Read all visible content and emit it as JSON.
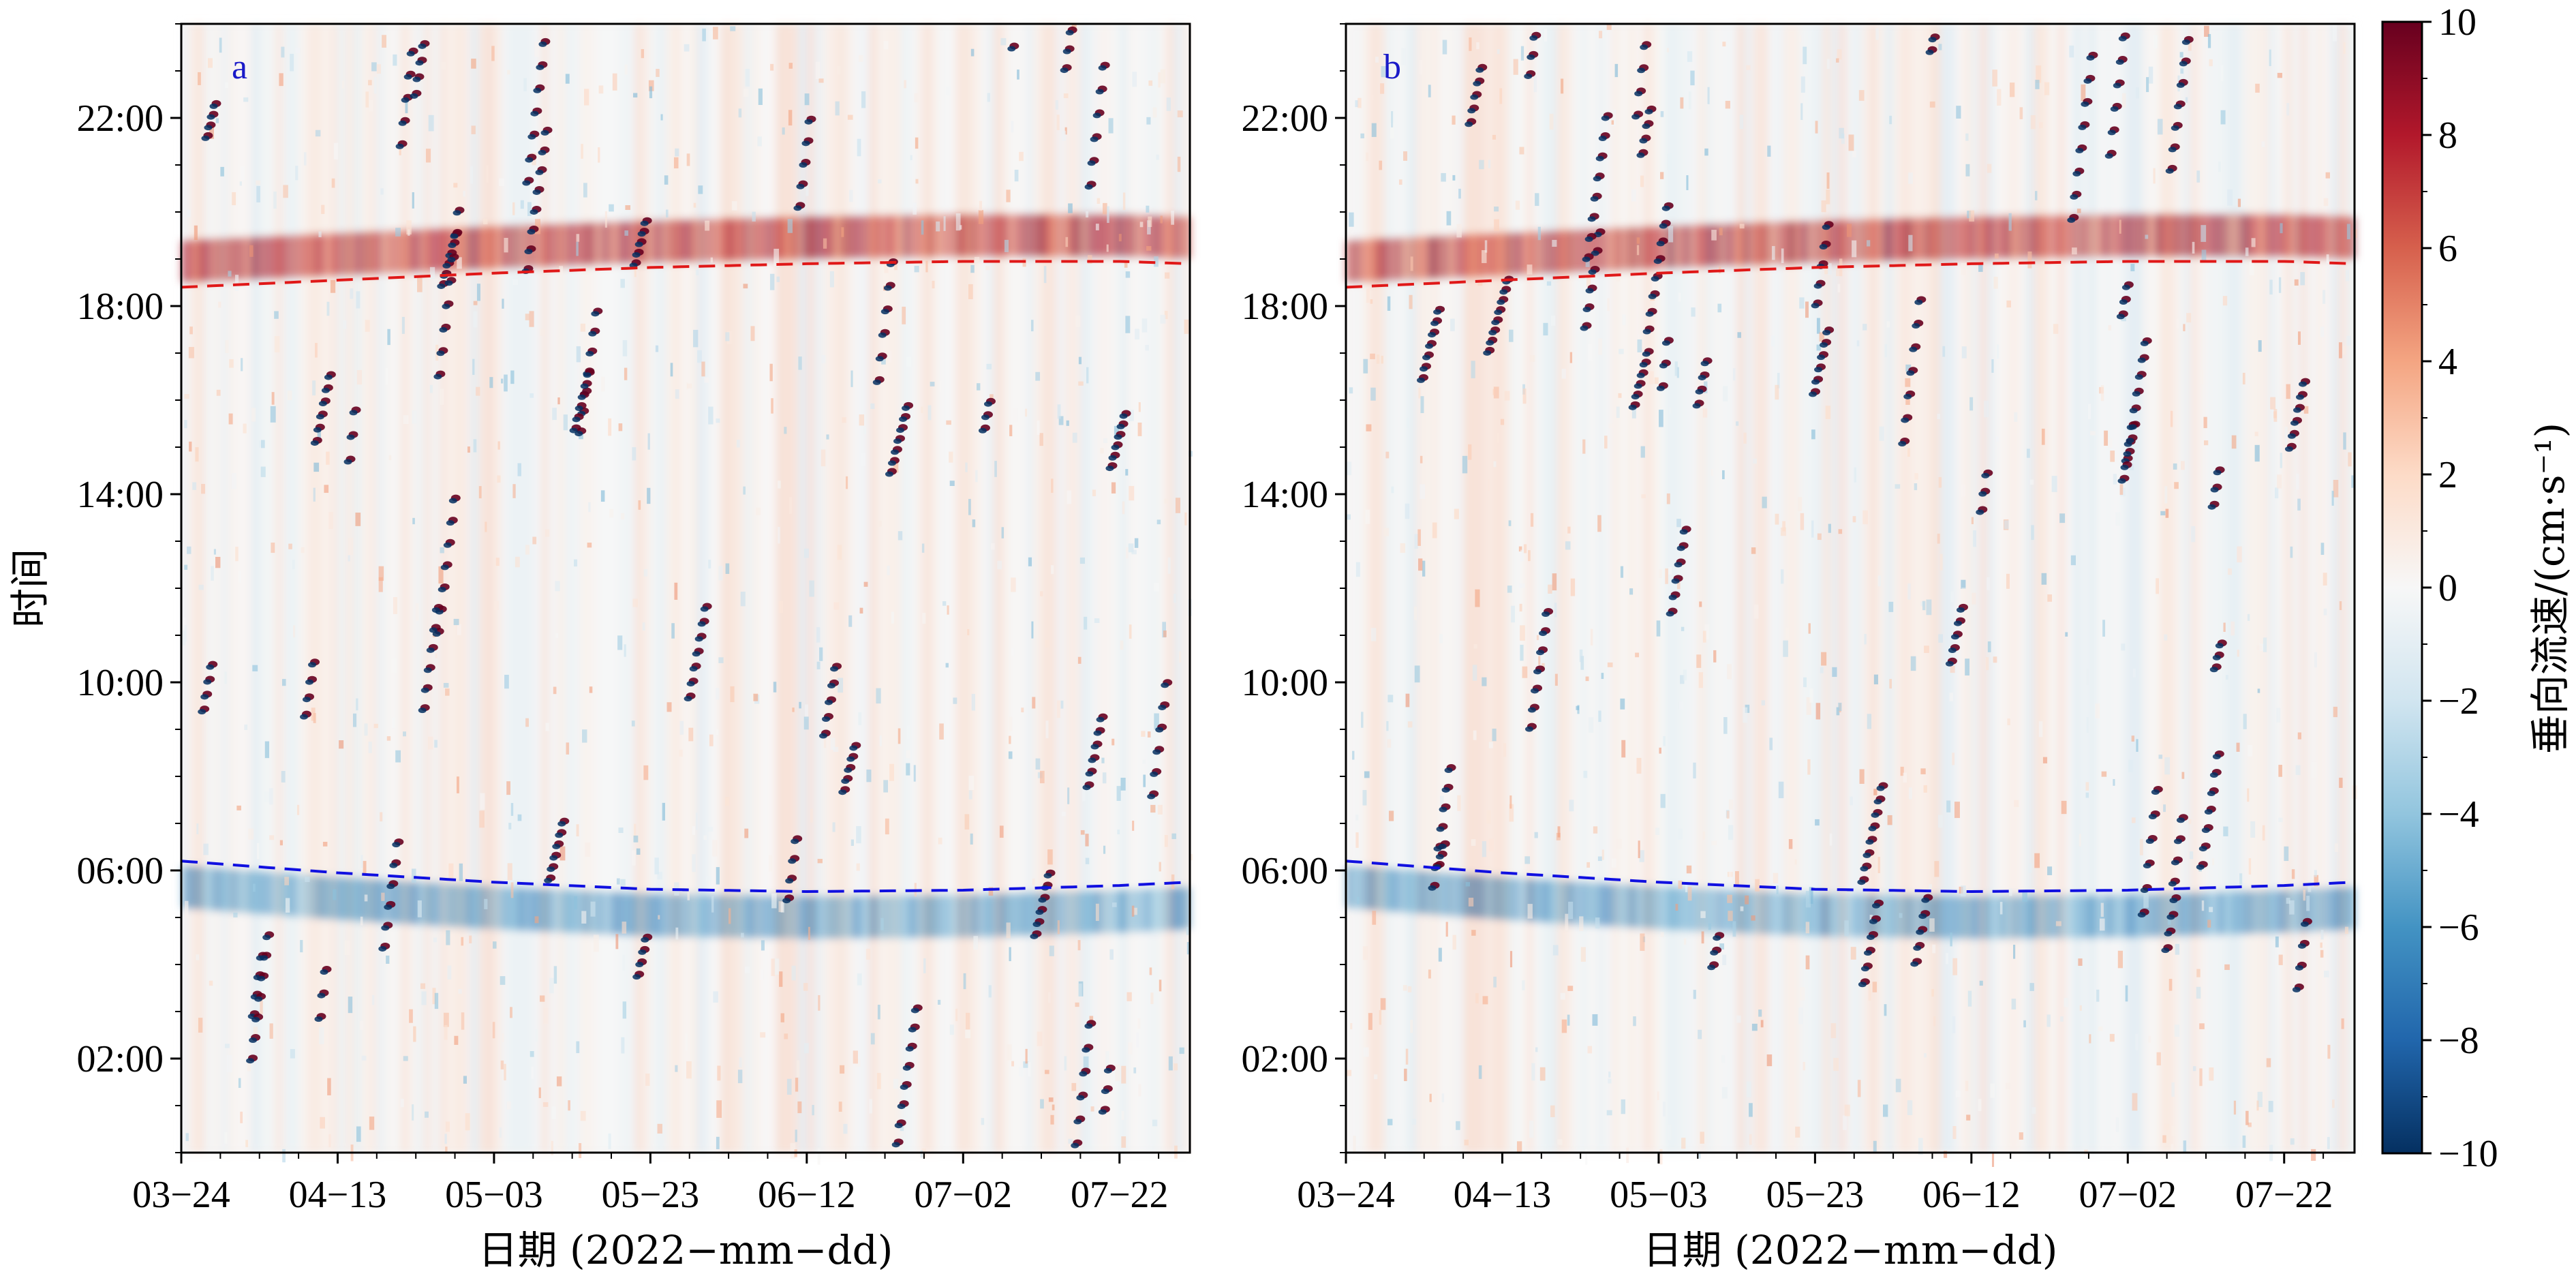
{
  "chart_data": [
    {
      "type": "heatmap",
      "panel_label": "a",
      "xlabel": "日期 (2022−mm−dd)",
      "ylabel": "时间",
      "x_tick_labels": [
        "03−24",
        "04−13",
        "05−03",
        "05−23",
        "06−12",
        "07−02",
        "07−22"
      ],
      "y_tick_labels": [
        "02:00",
        "06:00",
        "10:00",
        "14:00",
        "18:00",
        "22:00"
      ],
      "x_range": [
        "2022-03-24",
        "2022-07-31"
      ],
      "y_range_hours": [
        0,
        24
      ],
      "sunset_curve": {
        "color": "#e01818",
        "style": "dashed",
        "dates": [
          "2022-03-24",
          "2022-04-13",
          "2022-05-03",
          "2022-05-23",
          "2022-06-12",
          "2022-07-02",
          "2022-07-22",
          "2022-07-31"
        ],
        "hours": [
          18.4,
          18.55,
          18.7,
          18.82,
          18.9,
          18.95,
          18.95,
          18.9
        ]
      },
      "sunrise_curve": {
        "color": "#1010e0",
        "style": "dashed",
        "dates": [
          "2022-03-24",
          "2022-04-13",
          "2022-05-03",
          "2022-05-23",
          "2022-06-12",
          "2022-07-02",
          "2022-07-22",
          "2022-07-31"
        ],
        "hours": [
          6.2,
          5.95,
          5.75,
          5.6,
          5.55,
          5.58,
          5.68,
          5.75
        ]
      }
    },
    {
      "type": "heatmap",
      "panel_label": "b",
      "xlabel": "日期 (2022−mm−dd)",
      "ylabel": "",
      "x_tick_labels": [
        "03−24",
        "04−13",
        "05−03",
        "05−23",
        "06−12",
        "07−02",
        "07−22"
      ],
      "y_tick_labels": [
        "02:00",
        "06:00",
        "10:00",
        "14:00",
        "18:00",
        "22:00"
      ],
      "x_range": [
        "2022-03-24",
        "2022-07-31"
      ],
      "y_range_hours": [
        0,
        24
      ],
      "sunset_curve": {
        "color": "#e01818",
        "style": "dashed",
        "dates": [
          "2022-03-24",
          "2022-04-13",
          "2022-05-03",
          "2022-05-23",
          "2022-06-12",
          "2022-07-02",
          "2022-07-22",
          "2022-07-31"
        ],
        "hours": [
          18.4,
          18.55,
          18.7,
          18.82,
          18.9,
          18.95,
          18.95,
          18.9
        ]
      },
      "sunrise_curve": {
        "color": "#1010e0",
        "style": "dashed",
        "dates": [
          "2022-03-24",
          "2022-04-13",
          "2022-05-03",
          "2022-05-23",
          "2022-06-12",
          "2022-07-02",
          "2022-07-22",
          "2022-07-31"
        ],
        "hours": [
          6.2,
          5.95,
          5.75,
          5.6,
          5.55,
          5.58,
          5.68,
          5.75
        ]
      }
    }
  ],
  "colorbar": {
    "label": "垂向流速/(cm·s⁻¹)",
    "colormap": "RdBu_r",
    "min": -10,
    "max": 10,
    "tick_values": [
      10,
      8,
      6,
      4,
      2,
      0,
      -2,
      -4,
      -6,
      -8,
      -10
    ],
    "tick_labels": [
      "10",
      "8",
      "6",
      "4",
      "2",
      "0",
      "−2",
      "−4",
      "−6",
      "−8",
      "−10"
    ]
  },
  "colors": {
    "cmap_stops": [
      "#053061",
      "#2166ac",
      "#4393c3",
      "#92c5de",
      "#d1e5f0",
      "#f7f7f7",
      "#fddbc7",
      "#f4a582",
      "#d6604d",
      "#b2182b",
      "#67001f"
    ],
    "panel_tag": "#1a1ac8"
  }
}
